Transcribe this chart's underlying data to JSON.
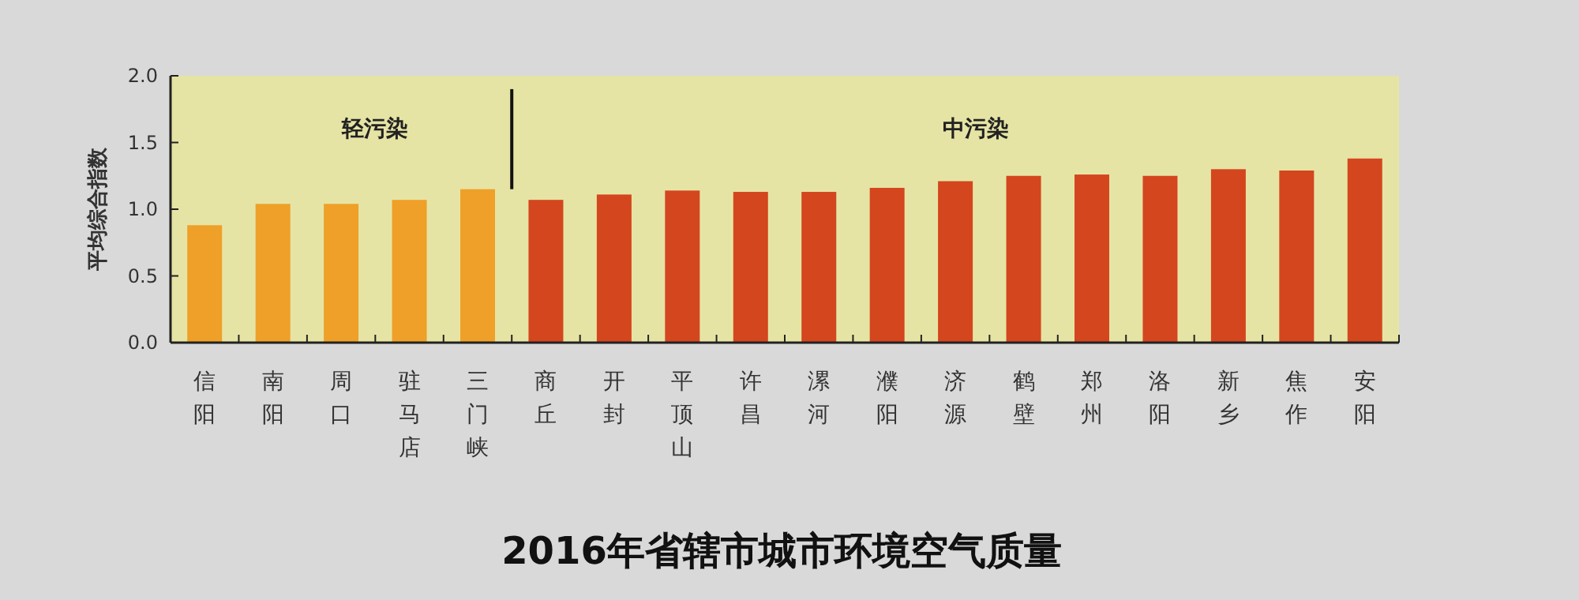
{
  "chart_data": {
    "type": "bar",
    "title": "2016年省辖市城市环境空气质量",
    "ylabel": "平均综合指数",
    "categories": [
      "信阳",
      "南阳",
      "周口",
      "驻马店",
      "三门峡",
      "商丘",
      "开封",
      "平顶山",
      "许昌",
      "漯河",
      "濮阳",
      "济源",
      "鹤壁",
      "郑州",
      "洛阳",
      "新乡",
      "焦作",
      "安阳"
    ],
    "values": [
      0.88,
      1.04,
      1.04,
      1.07,
      1.15,
      1.07,
      1.11,
      1.14,
      1.13,
      1.13,
      1.16,
      1.21,
      1.25,
      1.26,
      1.25,
      1.3,
      1.29,
      1.38
    ],
    "colors": [
      "#efa028",
      "#efa028",
      "#efa028",
      "#efa028",
      "#efa028",
      "#d4461e",
      "#d4461e",
      "#d4461e",
      "#d4461e",
      "#d4461e",
      "#d4461e",
      "#d4461e",
      "#d4461e",
      "#d4461e",
      "#d4461e",
      "#d4461e",
      "#d4461e",
      "#d4461e"
    ],
    "ylim": [
      0,
      2
    ],
    "yticks": [
      {
        "value": 0,
        "label": "0.0"
      },
      {
        "value": 0.5,
        "label": "0.5"
      },
      {
        "value": 1,
        "label": "1.0"
      },
      {
        "value": 1.5,
        "label": "1.5"
      },
      {
        "value": 2,
        "label": "2.0"
      }
    ],
    "annotations": [
      "轻污染",
      "中污染"
    ]
  }
}
